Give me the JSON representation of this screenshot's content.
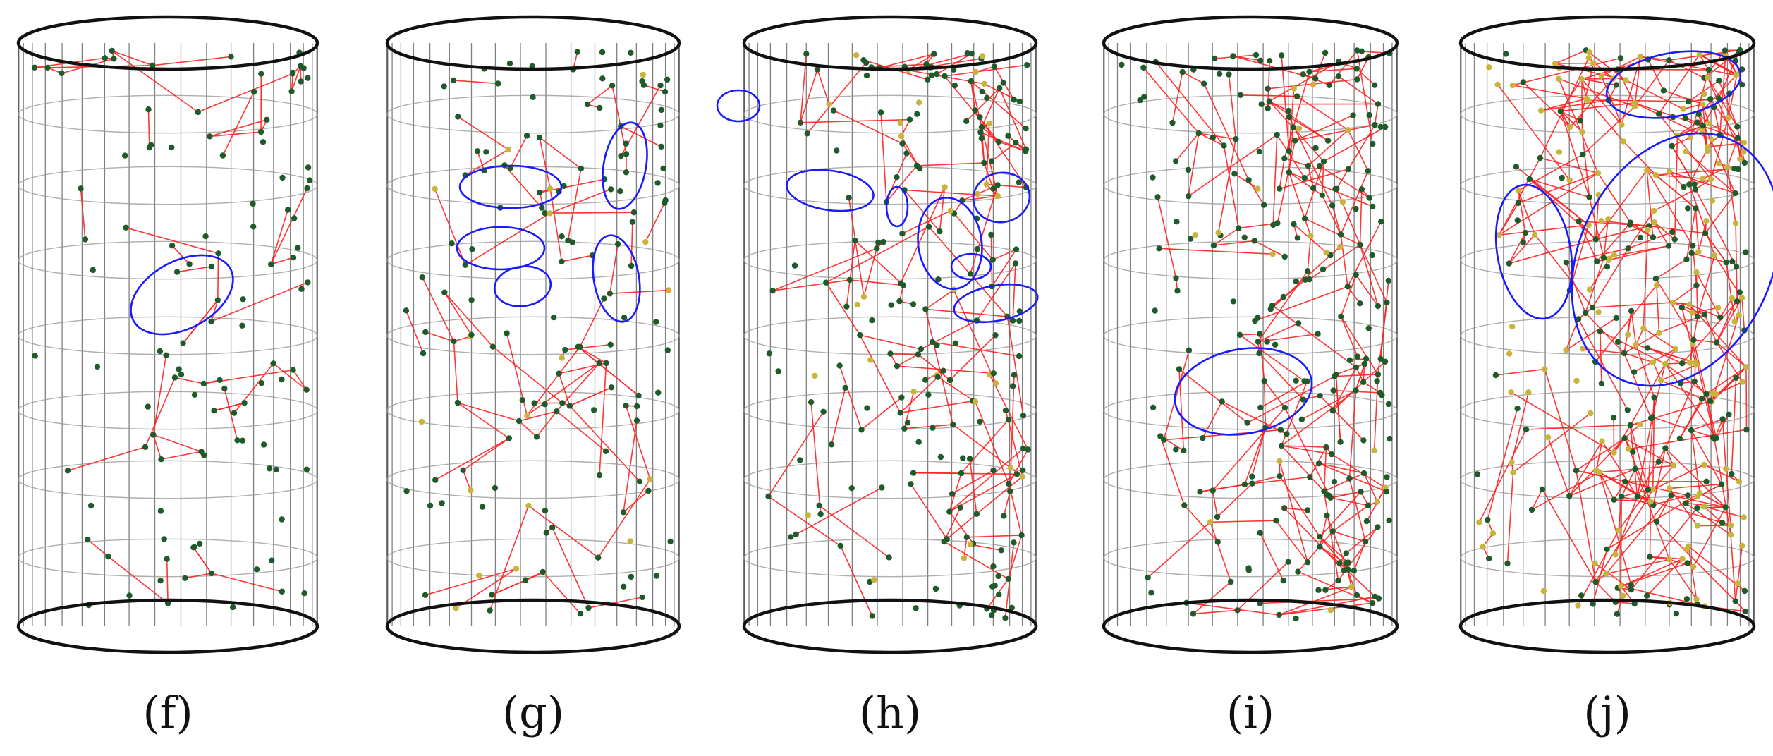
{
  "figure": {
    "panels": [
      {
        "id": "f",
        "label": "(f)",
        "clusters": 1,
        "density": {
          "nodes": 110,
          "links": 60,
          "yellow_fraction": 0.0
        }
      },
      {
        "id": "g",
        "label": "(g)",
        "clusters": 5,
        "density": {
          "nodes": 150,
          "links": 90,
          "yellow_fraction": 0.2
        }
      },
      {
        "id": "h",
        "label": "(h)",
        "clusters": 7,
        "density": {
          "nodes": 220,
          "links": 150,
          "yellow_fraction": 0.15
        }
      },
      {
        "id": "i",
        "label": "(i)",
        "clusters": 1,
        "density": {
          "nodes": 260,
          "links": 230,
          "yellow_fraction": 0.1
        }
      },
      {
        "id": "j",
        "label": "(j)",
        "clusters": 3,
        "density": {
          "nodes": 330,
          "links": 420,
          "yellow_fraction": 0.45
        }
      }
    ],
    "colors": {
      "cylinder_edge": "#111111",
      "grid_line": "#555555",
      "ring_line": "#9a9a9a",
      "node_green": "#1f5a2b",
      "node_yellow": "#c8b43a",
      "link": "#ff2020",
      "cluster_ellipse": "#1a1aff"
    }
  }
}
